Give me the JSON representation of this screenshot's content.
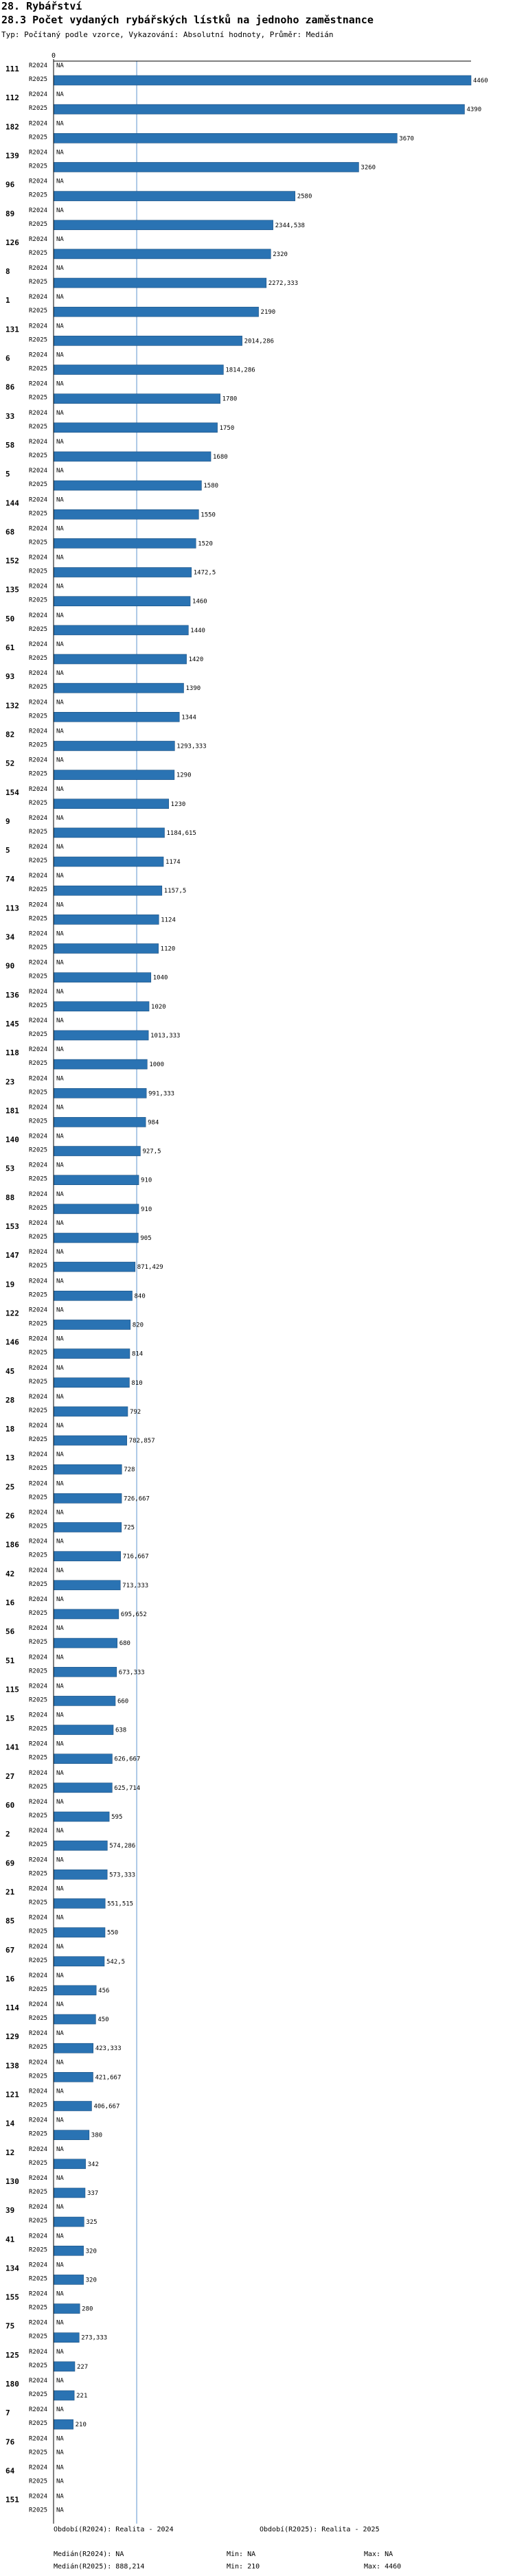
{
  "header": {
    "section": "28. Rybářství",
    "title": "28.3 Počet vydaných rybářských lístků na jednoho zaměstnance",
    "subtitle": "Typ: Počítaný podle vzorce, Vykazování: Absolutní hodnoty, Průměr: Medián"
  },
  "colors": {
    "bar": "#2a73b3",
    "bar_stroke": "#1b4f80",
    "median_line": "#7aa7d6",
    "axis": "#000000"
  },
  "chart_data": {
    "type": "bar",
    "orientation": "horizontal",
    "title": "28.3 Počet vydaných rybářských lístků na jednoho zaměstnance",
    "axis_zero_label": "0",
    "xlim": [
      0,
      4460
    ],
    "median_2025": 888.214,
    "series_names": [
      "R2024",
      "R2025"
    ],
    "na_label": "NA",
    "categories": [
      "111",
      "112",
      "182",
      "139",
      "96",
      "89",
      "126",
      "8",
      "1",
      "131",
      "6",
      "86",
      "33",
      "58",
      "5",
      "144",
      "68",
      "152",
      "135",
      "50",
      "61",
      "93",
      "132",
      "82",
      "52",
      "154",
      "9",
      "5",
      "74",
      "113",
      "34",
      "90",
      "136",
      "145",
      "118",
      "23",
      "181",
      "140",
      "53",
      "88",
      "153",
      "147",
      "19",
      "122",
      "146",
      "45",
      "28",
      "18",
      "13",
      "25",
      "26",
      "186",
      "42",
      "16",
      "56",
      "51",
      "115",
      "15",
      "141",
      "27",
      "60",
      "2",
      "69",
      "21",
      "85",
      "67",
      "16",
      "114",
      "129",
      "138",
      "121",
      "14",
      "12",
      "130",
      "39",
      "41",
      "134",
      "155",
      "75",
      "125",
      "180",
      "7",
      "76",
      "64",
      "151"
    ],
    "series": [
      {
        "name": "R2024",
        "values": [
          null,
          null,
          null,
          null,
          null,
          null,
          null,
          null,
          null,
          null,
          null,
          null,
          null,
          null,
          null,
          null,
          null,
          null,
          null,
          null,
          null,
          null,
          null,
          null,
          null,
          null,
          null,
          null,
          null,
          null,
          null,
          null,
          null,
          null,
          null,
          null,
          null,
          null,
          null,
          null,
          null,
          null,
          null,
          null,
          null,
          null,
          null,
          null,
          null,
          null,
          null,
          null,
          null,
          null,
          null,
          null,
          null,
          null,
          null,
          null,
          null,
          null,
          null,
          null,
          null,
          null,
          null,
          null,
          null,
          null,
          null,
          null,
          null,
          null,
          null,
          null,
          null,
          null,
          null,
          null,
          null,
          null,
          null,
          null,
          null
        ]
      },
      {
        "name": "R2025",
        "values": [
          4460,
          4390,
          3670,
          3260,
          2580,
          2344.538,
          2320,
          2272.333,
          2190,
          2014.286,
          1814.286,
          1780,
          1750,
          1680,
          1580,
          1550,
          1520,
          1472.5,
          1460,
          1440,
          1420,
          1390,
          1344,
          1293.333,
          1290,
          1230,
          1184.615,
          1174,
          1157.5,
          1124,
          1120,
          1040,
          1020,
          1013.333,
          1000,
          991.333,
          984,
          927.5,
          910,
          910,
          905,
          871.429,
          840,
          820,
          814,
          810,
          792,
          782.857,
          728,
          726.667,
          725,
          716.667,
          713.333,
          695.652,
          680,
          673.333,
          660,
          638,
          626.667,
          625.714,
          595,
          574.286,
          573.333,
          551.515,
          550,
          542.5,
          456,
          450,
          423.333,
          421.667,
          406.667,
          380,
          342,
          337,
          325,
          320,
          320,
          280,
          273.333,
          227,
          221,
          210,
          null,
          null,
          null
        ]
      }
    ],
    "value_labels": [
      "4460",
      "4390",
      "3670",
      "3260",
      "2580",
      "2344,538",
      "2320",
      "2272,333",
      "2190",
      "2014,286",
      "1814,286",
      "1780",
      "1750",
      "1680",
      "1580",
      "1550",
      "1520",
      "1472,5",
      "1460",
      "1440",
      "1420",
      "1390",
      "1344",
      "1293,333",
      "1290",
      "1230",
      "1184,615",
      "1174",
      "1157,5",
      "1124",
      "1120",
      "1040",
      "1020",
      "1013,333",
      "1000",
      "991,333",
      "984",
      "927,5",
      "910",
      "910",
      "905",
      "871,429",
      "840",
      "820",
      "814",
      "810",
      "792",
      "782,857",
      "728",
      "726,667",
      "725",
      "716,667",
      "713,333",
      "695,652",
      "680",
      "673,333",
      "660",
      "638",
      "626,667",
      "625,714",
      "595",
      "574,286",
      "573,333",
      "551,515",
      "550",
      "542,5",
      "456",
      "450",
      "423,333",
      "421,667",
      "406,667",
      "380",
      "342",
      "337",
      "325",
      "320",
      "320",
      "280",
      "273,333",
      "227",
      "221",
      "210",
      "NA",
      "NA",
      "NA"
    ]
  },
  "footer": {
    "period1": "Období(R2024): Realita - 2024",
    "period2": "Období(R2025): Realita - 2025",
    "median1": "Medián(R2024): NA",
    "min1": "Min: NA",
    "max1": "Max: NA",
    "median2": "Medián(R2025): 888,214",
    "min2": "Min: 210",
    "max2": "Max: 4460"
  }
}
